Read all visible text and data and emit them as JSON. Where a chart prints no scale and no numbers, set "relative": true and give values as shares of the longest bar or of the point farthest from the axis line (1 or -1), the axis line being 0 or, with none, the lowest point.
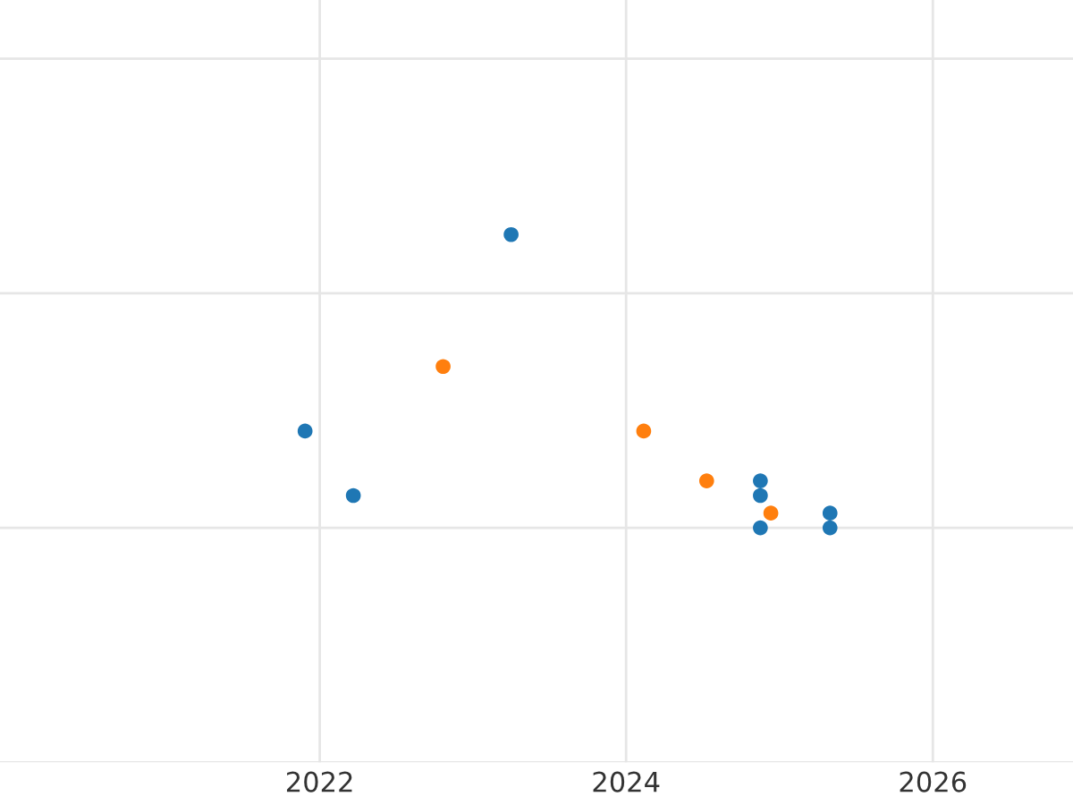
{
  "chart_data": {
    "type": "scatter",
    "relative": true,
    "grid": true,
    "marker": "circle",
    "xlim": [
      "2019-12-01",
      "2026-12-01"
    ],
    "xticks": [
      "2022",
      "2024",
      "2026"
    ],
    "series": [
      {
        "color": "#1f77b4",
        "x": [
          "2021-11-27",
          "2022-03-22",
          "2023-04-02",
          "2024-11-16",
          "2024-11-16",
          "2024-11-16",
          "2025-05-01",
          "2025-05-01"
        ],
        "values": [
          0.33,
          0.11,
          1,
          0.16,
          0.11,
          0,
          0.05,
          0
        ]
      },
      {
        "color": "#ff7f0e",
        "x": [
          "2022-10-22",
          "2024-02-12",
          "2024-07-11",
          "2024-12-11"
        ],
        "values": [
          0.55,
          0.33,
          0.16,
          0.05
        ]
      }
    ]
  }
}
